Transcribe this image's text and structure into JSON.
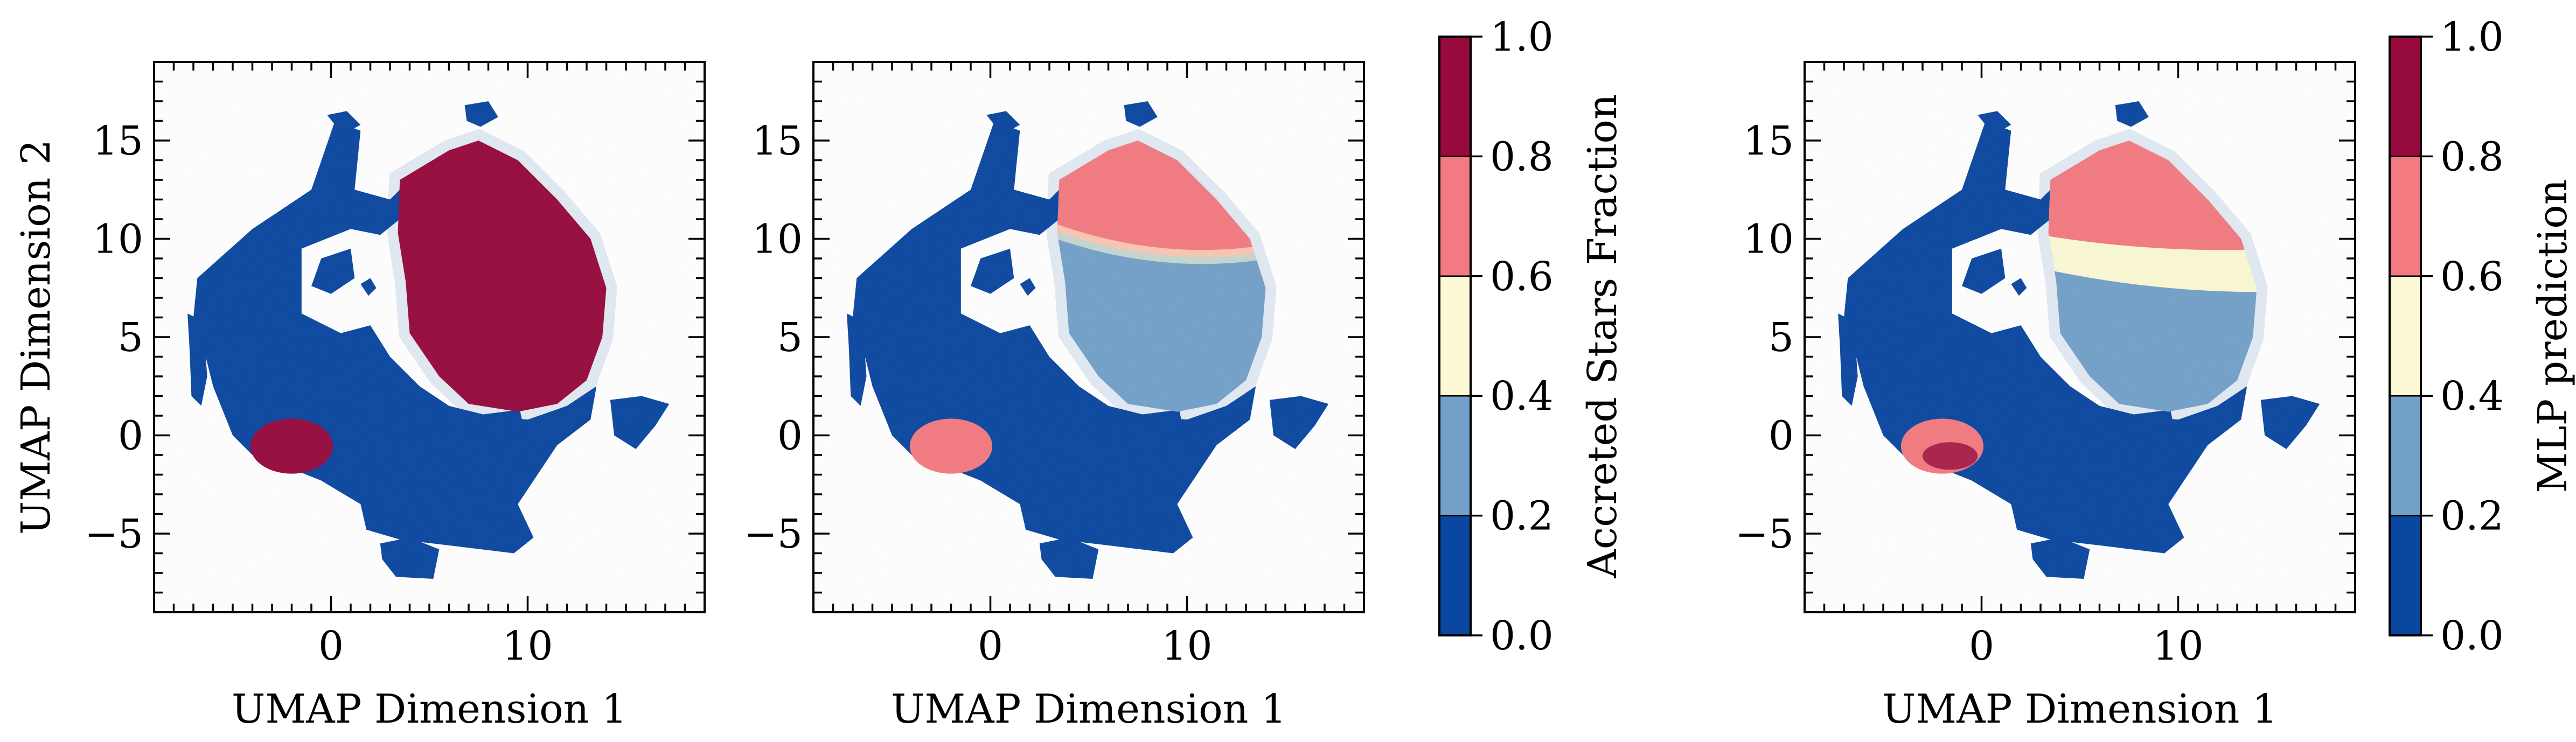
{
  "colors": {
    "bin_0_0.2": "#0a47a0",
    "bin_0.2_0.4": "#73a0c8",
    "bin_0.4_0.6": "#fbf8d3",
    "bin_0.6_0.8": "#f27a80",
    "bin_0.8_1.0": "#960a3d"
  },
  "chart_data": [
    {
      "type": "scatter",
      "title": "",
      "xlabel": "UMAP Dimension 1",
      "ylabel": "UMAP Dimension 2",
      "xlim": [
        -9,
        19
      ],
      "ylim": [
        -9,
        19
      ],
      "x_ticks": [
        0,
        10
      ],
      "x_tick_labels": [
        "0",
        "10"
      ],
      "y_ticks": [
        -5,
        0,
        5,
        10,
        15
      ],
      "y_tick_labels": [
        "−5",
        "0",
        "5",
        "10",
        "15"
      ],
      "color_variable": "accreted stars fraction",
      "regions": [
        {
          "name": "main in-situ body",
          "center": [
            2,
            5
          ],
          "value": 0.0
        },
        {
          "name": "large accreted clump",
          "center": [
            8.5,
            8
          ],
          "value": 0.95
        },
        {
          "name": "small accreted ellipse",
          "center": [
            -2,
            -0.5
          ],
          "value": 0.95
        }
      ]
    },
    {
      "type": "scatter",
      "title": "",
      "xlabel": "UMAP Dimension 1",
      "ylabel": "",
      "xlim": [
        -9,
        19
      ],
      "ylim": [
        -9,
        19
      ],
      "x_ticks": [
        0,
        10
      ],
      "x_tick_labels": [
        "0",
        "10"
      ],
      "y_ticks": [
        -5,
        0,
        5,
        10,
        15
      ],
      "y_tick_labels": [
        "−5",
        "0",
        "5",
        "10",
        "15"
      ],
      "color_variable": "accreted stars fraction",
      "regions": [
        {
          "name": "main in-situ body",
          "center": [
            2,
            5
          ],
          "value": 0.0
        },
        {
          "name": "clump upper part",
          "center": [
            8,
            11
          ],
          "value": 0.7
        },
        {
          "name": "clump lower part",
          "center": [
            9,
            5.5
          ],
          "value": 0.3
        },
        {
          "name": "small ellipse",
          "center": [
            -2,
            -0.5
          ],
          "value": 0.7
        }
      ]
    },
    {
      "type": "scatter",
      "title": "",
      "xlabel": "UMAP Dimension 1",
      "ylabel": "",
      "xlim": [
        -9,
        19
      ],
      "ylim": [
        -9,
        19
      ],
      "x_ticks": [
        0,
        10
      ],
      "x_tick_labels": [
        "0",
        "10"
      ],
      "y_ticks": [
        -5,
        0,
        5,
        10,
        15
      ],
      "y_tick_labels": [
        "−5",
        "0",
        "5",
        "10",
        "15"
      ],
      "color_variable": "MLP prediction",
      "regions": [
        {
          "name": "main in-situ body",
          "center": [
            2,
            5
          ],
          "value": 0.0
        },
        {
          "name": "clump top band",
          "center": [
            8,
            12
          ],
          "value": 0.7
        },
        {
          "name": "clump middle band",
          "center": [
            9,
            9
          ],
          "value": 0.5
        },
        {
          "name": "clump lower band",
          "center": [
            9,
            5
          ],
          "value": 0.3
        },
        {
          "name": "small ellipse",
          "center": [
            -2,
            -0.5
          ],
          "value": 0.7
        }
      ]
    }
  ],
  "colorbars": [
    {
      "label": "Accreted Stars Fraction",
      "range": [
        0,
        1
      ],
      "boundaries": [
        0.0,
        0.2,
        0.4,
        0.6,
        0.8,
        1.0
      ],
      "tick_labels": [
        "0.0",
        "0.2",
        "0.4",
        "0.6",
        "0.8",
        "1.0"
      ]
    },
    {
      "label": "MLP prediction",
      "range": [
        0,
        1
      ],
      "boundaries": [
        0.0,
        0.2,
        0.4,
        0.6,
        0.8,
        1.0
      ],
      "tick_labels": [
        "0.0",
        "0.2",
        "0.4",
        "0.6",
        "0.8",
        "1.0"
      ]
    }
  ]
}
